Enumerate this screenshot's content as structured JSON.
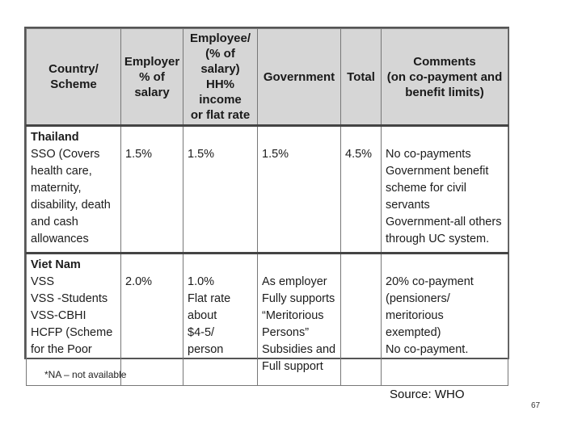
{
  "table": {
    "headers": [
      [
        "Country/",
        "Scheme"
      ],
      [
        "Employer",
        "% of",
        "salary"
      ],
      [
        "Employee/",
        "(% of salary)",
        "HH% income",
        "or flat rate"
      ],
      [
        "Government"
      ],
      [
        "Total"
      ],
      [
        "Comments",
        "(on co-payment and",
        "benefit limits)"
      ]
    ],
    "rows": [
      {
        "country": "Thailand",
        "scheme_lines": [
          "SSO (Covers",
          "health care,",
          "maternity,",
          "disability, death",
          "and cash",
          "allowances"
        ],
        "employer": "1.5%",
        "employee_lines": [
          "1.5%"
        ],
        "government_lines": [
          "1.5%"
        ],
        "total": "4.5%",
        "comments_lines": [
          "No co-payments",
          "Government benefit",
          "scheme for civil",
          "servants",
          "Government-all others",
          "through UC system."
        ]
      },
      {
        "country": "Viet Nam",
        "scheme_lines": [
          "VSS",
          "VSS -Students",
          "VSS-CBHI",
          "HCFP (Scheme",
          "for the Poor"
        ],
        "employer": "2.0%",
        "employee_lines": [
          "1.0%",
          "Flat rate",
          "about",
          "$4-5/ person"
        ],
        "government_lines": [
          "As employer",
          "Fully  supports",
          "“Meritorious",
          "Persons”",
          "Subsidies  and",
          "Full support"
        ],
        "total": "",
        "comments_lines": [
          "20% co-payment",
          "(pensioners/ meritorious",
          "exempted)",
          "No co-payment."
        ]
      }
    ]
  },
  "footnote": "*NA – not available",
  "source": "Source: WHO",
  "page_number": "67"
}
